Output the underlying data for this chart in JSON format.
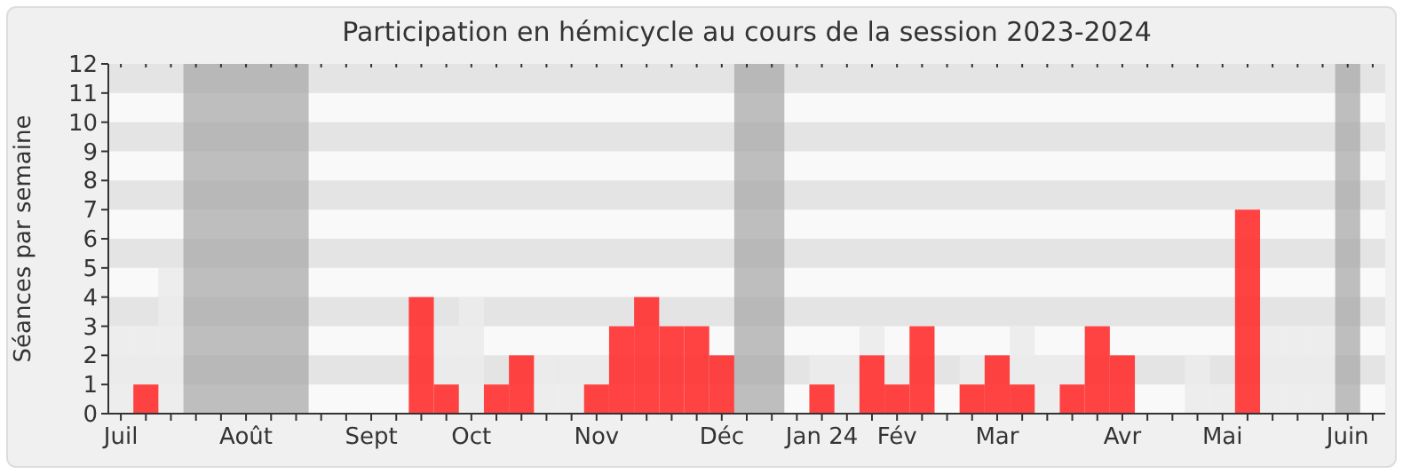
{
  "chart_data": {
    "type": "bar",
    "title": "Participation en hémicycle au cours de la session 2023-2024",
    "ylabel": "Séances par semaine",
    "categories": [
      "Juil",
      null,
      null,
      null,
      null,
      "Août",
      null,
      null,
      null,
      null,
      "Sept",
      null,
      null,
      null,
      "Oct",
      null,
      null,
      null,
      null,
      "Nov",
      null,
      null,
      null,
      null,
      "Déc",
      null,
      null,
      null,
      "Jan 24",
      null,
      null,
      "Fév",
      null,
      null,
      null,
      "Mar",
      null,
      null,
      null,
      null,
      "Avr",
      null,
      null,
      null,
      "Mai",
      null,
      null,
      null,
      null,
      "Juin",
      null
    ],
    "series": [
      {
        "color": "#ececec",
        "values": [
          3,
          3,
          5,
          null,
          null,
          null,
          null,
          null,
          null,
          null,
          null,
          null,
          null,
          3,
          4,
          null,
          null,
          2,
          2,
          2,
          null,
          null,
          null,
          null,
          null,
          null,
          null,
          null,
          2,
          2,
          3,
          2,
          null,
          null,
          2,
          null,
          3,
          2,
          2,
          null,
          null,
          null,
          null,
          2,
          1,
          null,
          3,
          3,
          3,
          null,
          null
        ]
      },
      {
        "color": "#ff3333",
        "values": [
          0,
          1,
          0,
          null,
          null,
          null,
          null,
          null,
          0,
          0,
          0,
          0,
          4,
          1,
          0,
          1,
          2,
          0,
          0,
          1,
          3,
          4,
          3,
          3,
          2,
          null,
          null,
          0,
          1,
          0,
          2,
          1,
          3,
          0,
          1,
          2,
          1,
          0,
          1,
          3,
          2,
          0,
          0,
          0,
          0,
          7,
          0,
          0,
          0,
          null,
          0
        ]
      }
    ],
    "ylim": [
      0,
      12
    ],
    "yticks": [
      0,
      1,
      2,
      3,
      4,
      5,
      6,
      7,
      8,
      9,
      10,
      11,
      12
    ]
  }
}
